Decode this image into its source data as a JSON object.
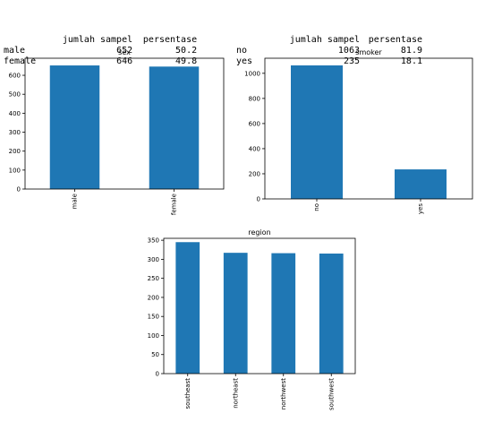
{
  "tables": [
    {
      "columns": [
        "jumlah sampel",
        "persentase"
      ],
      "rows": [
        {
          "label": "male",
          "count": "652",
          "pct": "50.2"
        },
        {
          "label": "female",
          "count": "646",
          "pct": "49.8"
        }
      ]
    },
    {
      "columns": [
        "jumlah sampel",
        "persentase"
      ],
      "rows": [
        {
          "label": "no",
          "count": "1063",
          "pct": "81.9"
        },
        {
          "label": "yes",
          "count": "235",
          "pct": "18.1"
        }
      ]
    }
  ],
  "chart_data": [
    {
      "type": "bar",
      "title": "sex",
      "categories": [
        "male",
        "female"
      ],
      "values": [
        652,
        646
      ],
      "ylim": [
        0,
        690
      ],
      "yticks": [
        0,
        100,
        200,
        300,
        400,
        500,
        600
      ],
      "color": "#1f77b4"
    },
    {
      "type": "bar",
      "title": "smoker",
      "categories": [
        "no",
        "yes"
      ],
      "values": [
        1063,
        235
      ],
      "ylim": [
        0,
        1120
      ],
      "yticks": [
        0,
        200,
        400,
        600,
        800,
        1000
      ],
      "color": "#1f77b4"
    },
    {
      "type": "bar",
      "title": "region",
      "categories": [
        "southeast",
        "northeast",
        "northwest",
        "southwest"
      ],
      "values": [
        345,
        317,
        316,
        315
      ],
      "ylim": [
        0,
        355
      ],
      "yticks": [
        0,
        50,
        100,
        150,
        200,
        250,
        300,
        350
      ],
      "color": "#1f77b4"
    }
  ]
}
